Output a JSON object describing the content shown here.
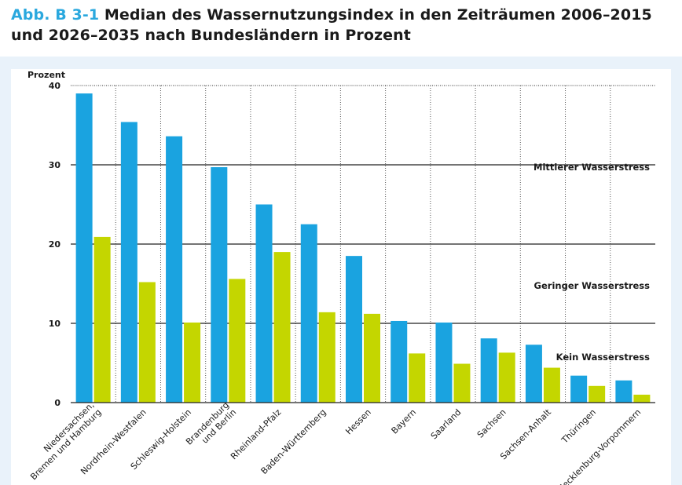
{
  "header": {
    "fig_label": "Abb. B 3-1",
    "title_line1": "Median des Wassernutzungsindex in den Zeiträumen 2006–2015",
    "title_line2": "und 2026–2035 nach Bundesländern in Prozent"
  },
  "zones": {
    "mittel": "Mittlerer Wasserstress",
    "gering": "Geringer Wasserstress",
    "kein": "Kein Wasserstress"
  },
  "colors": {
    "period1": "#1aa3e0",
    "period2": "#c4d600",
    "panel": "#e9f2fa"
  },
  "chart_data": {
    "type": "bar",
    "ylabel": "Prozent",
    "ylim": [
      0,
      40
    ],
    "yticks": [
      0,
      10,
      20,
      30,
      40
    ],
    "categories": [
      "Niedersachsen,\nBremen und Hamburg",
      "Nordrhein-Westfalen",
      "Schleswig-Holstein",
      "Brandenburg\nund Berlin",
      "Rheinland-Pfalz",
      "Baden-Württemberg",
      "Hessen",
      "Bayern",
      "Saarland",
      "Sachsen",
      "Sachsen-Anhalt",
      "Thüringen",
      "Mecklenburg-Vorpommern"
    ],
    "series": [
      {
        "values": [
          39.0,
          35.4,
          33.6,
          29.7,
          25.0,
          22.5,
          18.5,
          10.3,
          10.1,
          8.1,
          7.3,
          3.4,
          2.8
        ]
      },
      {
        "values": [
          20.9,
          15.2,
          10.1,
          15.6,
          19.0,
          11.4,
          11.2,
          6.2,
          4.9,
          6.3,
          4.4,
          2.1,
          1.0
        ]
      }
    ]
  }
}
